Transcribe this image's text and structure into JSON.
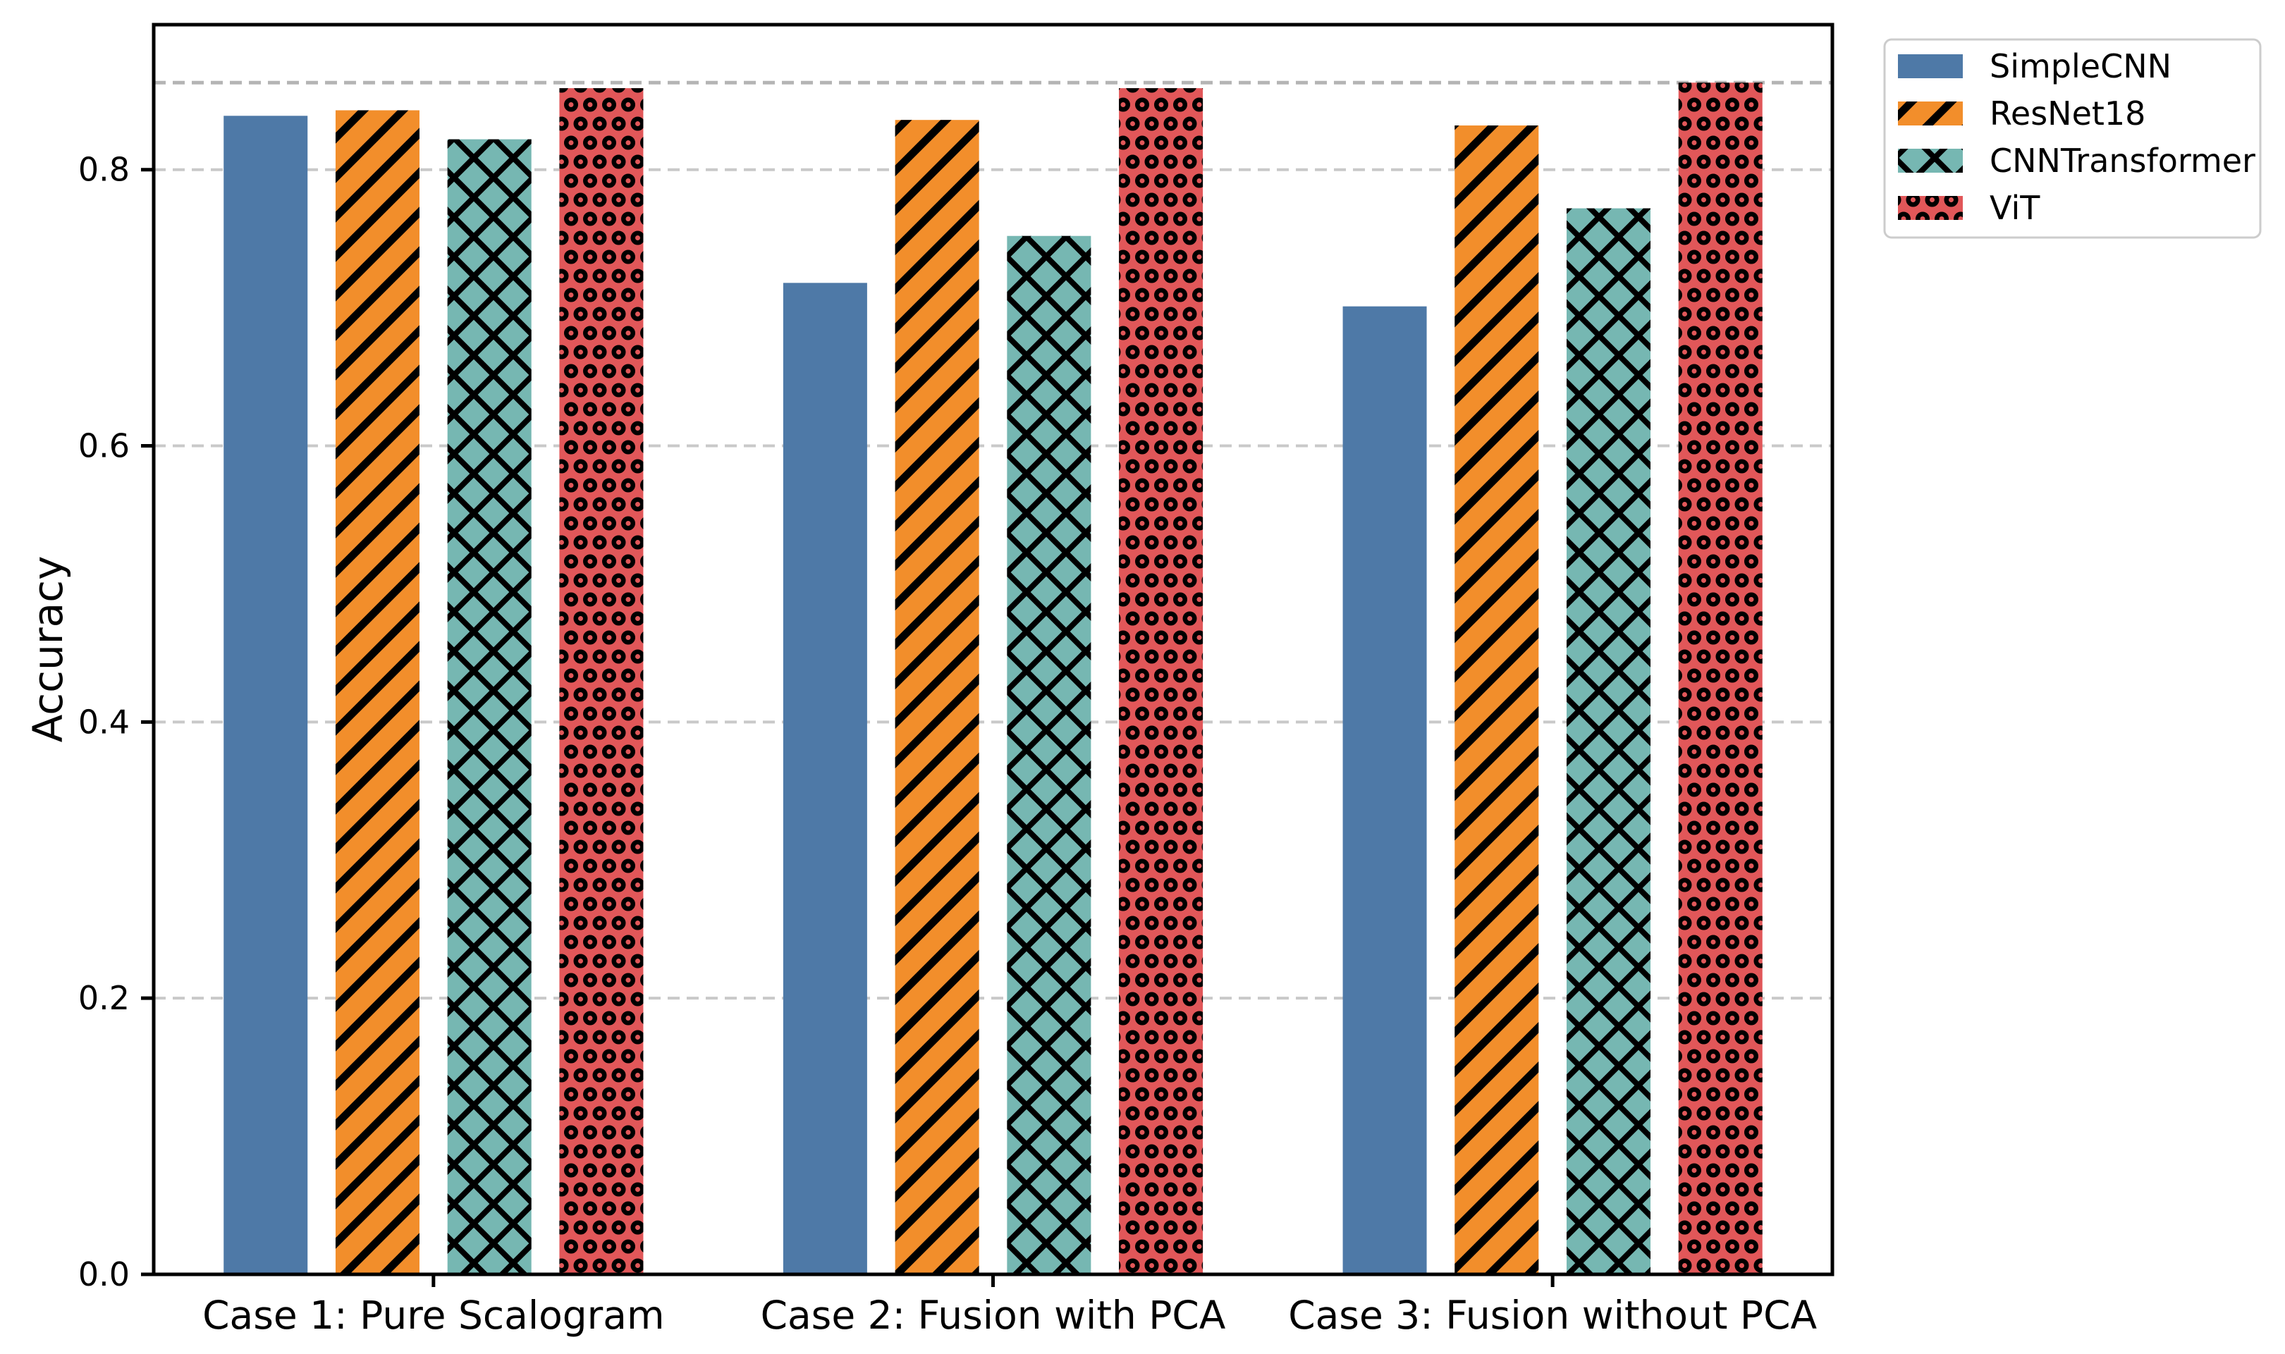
{
  "chart_data": {
    "type": "bar",
    "title": "",
    "ylabel": "Accuracy",
    "categories": [
      "Case 1: Pure Scalogram",
      "Case 2: Fusion with PCA",
      "Case 3: Fusion without PCA"
    ],
    "series": [
      {
        "name": "SimpleCNN",
        "color": "#4E79A7",
        "hatch": "none",
        "values": [
          0.839,
          0.718,
          0.701
        ]
      },
      {
        "name": "ResNet18",
        "color": "#F28E2B",
        "hatch": "slash",
        "values": [
          0.843,
          0.836,
          0.832
        ]
      },
      {
        "name": "CNNTransformer",
        "color": "#76B7B2",
        "hatch": "cross",
        "values": [
          0.822,
          0.752,
          0.772
        ]
      },
      {
        "name": "ViT",
        "color": "#E15759",
        "hatch": "dots",
        "values": [
          0.859,
          0.859,
          0.863
        ]
      }
    ],
    "hatch_color": "#000000",
    "y_ticks": [
      0.0,
      0.2,
      0.4,
      0.6,
      0.8
    ],
    "y_tick_labels": [
      "0.0",
      "0.2",
      "0.4",
      "0.6",
      "0.8"
    ],
    "ylim": [
      0,
      0.905
    ],
    "grid": {
      "show": true,
      "axis": "y",
      "style": "dashed",
      "color": "#c9c9c9"
    },
    "reference_line": {
      "value": 0.863,
      "style": "dashed",
      "color": "#b4b4b4"
    },
    "legend": {
      "position": "upper-right-outside",
      "frame_color": "#cccccc",
      "entries": [
        "SimpleCNN",
        "ResNet18",
        "CNNTransformer",
        "ViT"
      ]
    }
  }
}
